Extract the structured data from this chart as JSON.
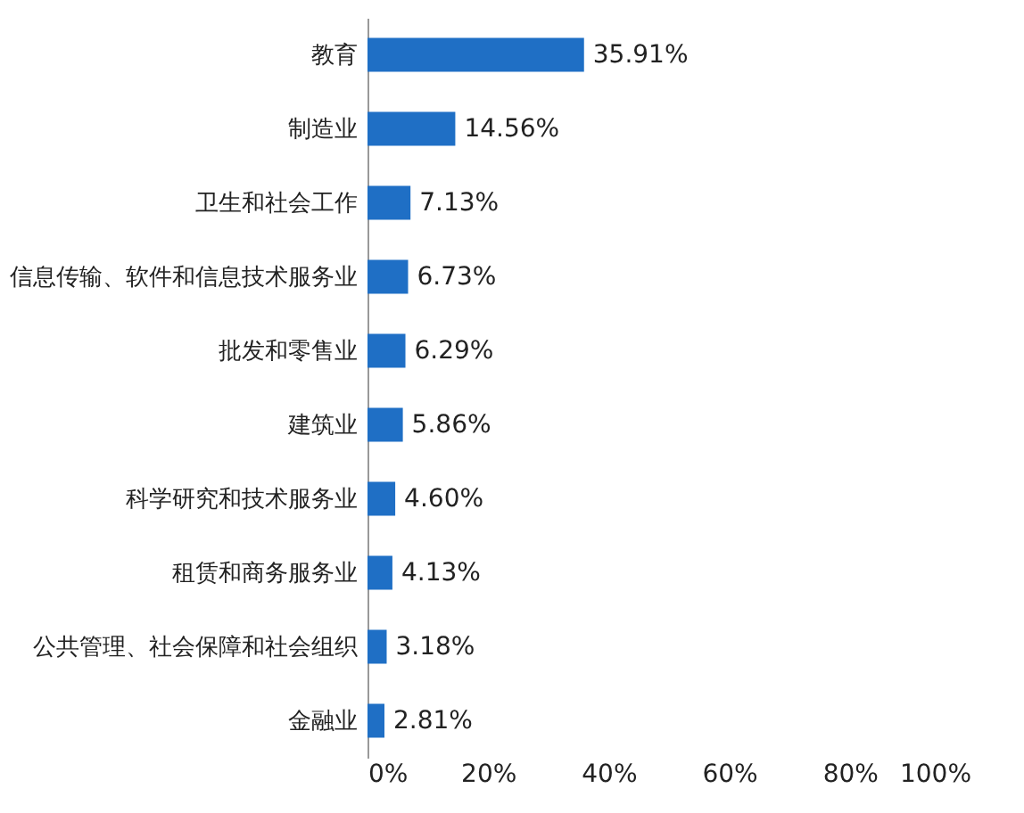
{
  "chart_data": {
    "type": "bar",
    "orientation": "horizontal",
    "categories": [
      "教育",
      "制造业",
      "卫生和社会工作",
      "信息传输、软件和信息技术服务业",
      "批发和零售业",
      "建筑业",
      "科学研究和技术服务业",
      "租赁和商务服务业",
      "公共管理、社会保障和社会组织",
      "金融业"
    ],
    "values": [
      35.91,
      14.56,
      7.13,
      6.73,
      6.29,
      5.86,
      4.6,
      4.13,
      3.18,
      2.81
    ],
    "value_labels": [
      "35.91%",
      "14.56%",
      "7.13%",
      "6.73%",
      "6.29%",
      "5.86%",
      "4.60%",
      "4.13%",
      "3.18%",
      "2.81%"
    ],
    "color": "#1f6fc5",
    "xlim": [
      0,
      100
    ],
    "xticks": [
      {
        "value": 0,
        "label": "0%"
      },
      {
        "value": 20,
        "label": "20%"
      },
      {
        "value": 40,
        "label": "40%"
      },
      {
        "value": 60,
        "label": "60%"
      },
      {
        "value": 80,
        "label": "80%"
      },
      {
        "value": 100,
        "label": "100%"
      }
    ],
    "grid": false
  }
}
